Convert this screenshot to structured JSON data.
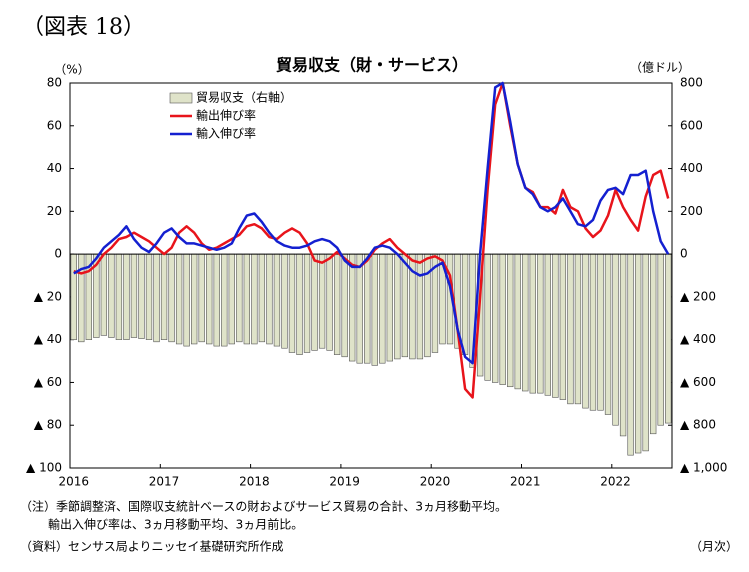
{
  "chart_data": {
    "type": "bar_line_dual",
    "figure_label": "（図表 18）",
    "title": "貿易収支（財・サービス）",
    "y_label": "（%）",
    "y2_label": "（億ドル）",
    "x_unit": "（月次）",
    "notes": [
      "（注）季節調整済、国際収支統計ベースの財およびサービス貿易の合計、3ヵ月移動平均。",
      "輸出入伸び率は、3ヵ月移動平均、3ヵ月前比。",
      "（資料）センサス局よりニッセイ基礎研究所作成"
    ],
    "categories": [
      "2016",
      null,
      null,
      null,
      null,
      null,
      null,
      null,
      null,
      null,
      null,
      null,
      "2017",
      null,
      null,
      null,
      null,
      null,
      null,
      null,
      null,
      null,
      null,
      null,
      "2018",
      null,
      null,
      null,
      null,
      null,
      null,
      null,
      null,
      null,
      null,
      null,
      "2019",
      null,
      null,
      null,
      null,
      null,
      null,
      null,
      null,
      null,
      null,
      null,
      "2020",
      null,
      null,
      null,
      null,
      null,
      null,
      null,
      null,
      null,
      null,
      null,
      "2021",
      null,
      null,
      null,
      null,
      null,
      null,
      null,
      null,
      null,
      null,
      null,
      "2022",
      null,
      null,
      null,
      null,
      null,
      null,
      null
    ],
    "ylim": [
      -100,
      80
    ],
    "yticks": [
      {
        "value": -100,
        "label": "▲ 100"
      },
      {
        "value": -80,
        "label": "▲ 80"
      },
      {
        "value": -60,
        "label": "▲ 60"
      },
      {
        "value": -40,
        "label": "▲ 40"
      },
      {
        "value": -20,
        "label": "▲ 20"
      },
      0,
      20,
      40,
      60,
      80
    ],
    "y2lim": [
      -1000,
      800
    ],
    "y2ticks": [
      {
        "value": -1000,
        "label": "▲ 1,000"
      },
      {
        "value": -800,
        "label": "▲ 800"
      },
      {
        "value": -600,
        "label": "▲ 600"
      },
      {
        "value": -400,
        "label": "▲ 400"
      },
      {
        "value": -200,
        "label": "▲ 200"
      },
      0,
      200,
      400,
      600,
      800
    ],
    "series": [
      {
        "name": "貿易収支（右軸）",
        "type": "bar",
        "axis": "y2",
        "color": "#dfe3c9",
        "values": [
          -400,
          -410,
          -400,
          -390,
          -380,
          -390,
          -400,
          -400,
          -390,
          -395,
          -400,
          -410,
          -400,
          -410,
          -420,
          -430,
          -420,
          -410,
          -420,
          -430,
          -430,
          -420,
          -410,
          -420,
          -420,
          -410,
          -420,
          -430,
          -440,
          -460,
          -470,
          -460,
          -450,
          -440,
          -450,
          -470,
          -480,
          -500,
          -510,
          -510,
          -520,
          -510,
          -500,
          -490,
          -480,
          -490,
          -490,
          -480,
          -460,
          -420,
          -420,
          -440,
          -470,
          -530,
          -570,
          -590,
          -600,
          -610,
          -620,
          -630,
          -640,
          -650,
          -650,
          -660,
          -670,
          -680,
          -700,
          -700,
          -720,
          -730,
          -730,
          -750,
          -800,
          -850,
          -940,
          -930,
          -920,
          -840,
          -800,
          -790
        ]
      },
      {
        "name": "輸出伸び率",
        "type": "line",
        "color": "#e8141b",
        "values": [
          -8,
          -9,
          -8,
          -5,
          0,
          3,
          7,
          8,
          10,
          8,
          6,
          3,
          0,
          3,
          10,
          13,
          10,
          5,
          2,
          3,
          5,
          7,
          9,
          13,
          14,
          12,
          8,
          7,
          10,
          12,
          10,
          5,
          -3,
          -4,
          -2,
          1,
          -2,
          -5,
          -6,
          -3,
          2,
          5,
          7,
          3,
          0,
          -3,
          -4,
          -2,
          -1,
          -3,
          -10,
          -35,
          -63,
          -67,
          -20,
          30,
          70,
          80,
          60,
          42,
          31,
          29,
          22,
          22,
          19,
          30,
          22,
          20,
          12,
          8,
          11,
          18,
          30,
          22,
          16,
          11,
          27,
          37,
          39,
          26
        ]
      },
      {
        "name": "輸入伸び率",
        "type": "line",
        "color": "#1420d0",
        "values": [
          -9,
          -7,
          -6,
          -2,
          3,
          6,
          9,
          13,
          7,
          3,
          1,
          5,
          10,
          12,
          8,
          5,
          5,
          4,
          3,
          2,
          3,
          5,
          12,
          18,
          19,
          15,
          10,
          6,
          4,
          3,
          3,
          4,
          6,
          7,
          6,
          3,
          -3,
          -6,
          -6,
          -2,
          3,
          4,
          3,
          0,
          -4,
          -8,
          -10,
          -9,
          -6,
          -4,
          -15,
          -35,
          -48,
          -51,
          0,
          40,
          78,
          80,
          62,
          42,
          31,
          28,
          22,
          20,
          22,
          26,
          20,
          14,
          13,
          16,
          25,
          30,
          31,
          28,
          37,
          37,
          39,
          20,
          6,
          0
        ]
      }
    ]
  }
}
